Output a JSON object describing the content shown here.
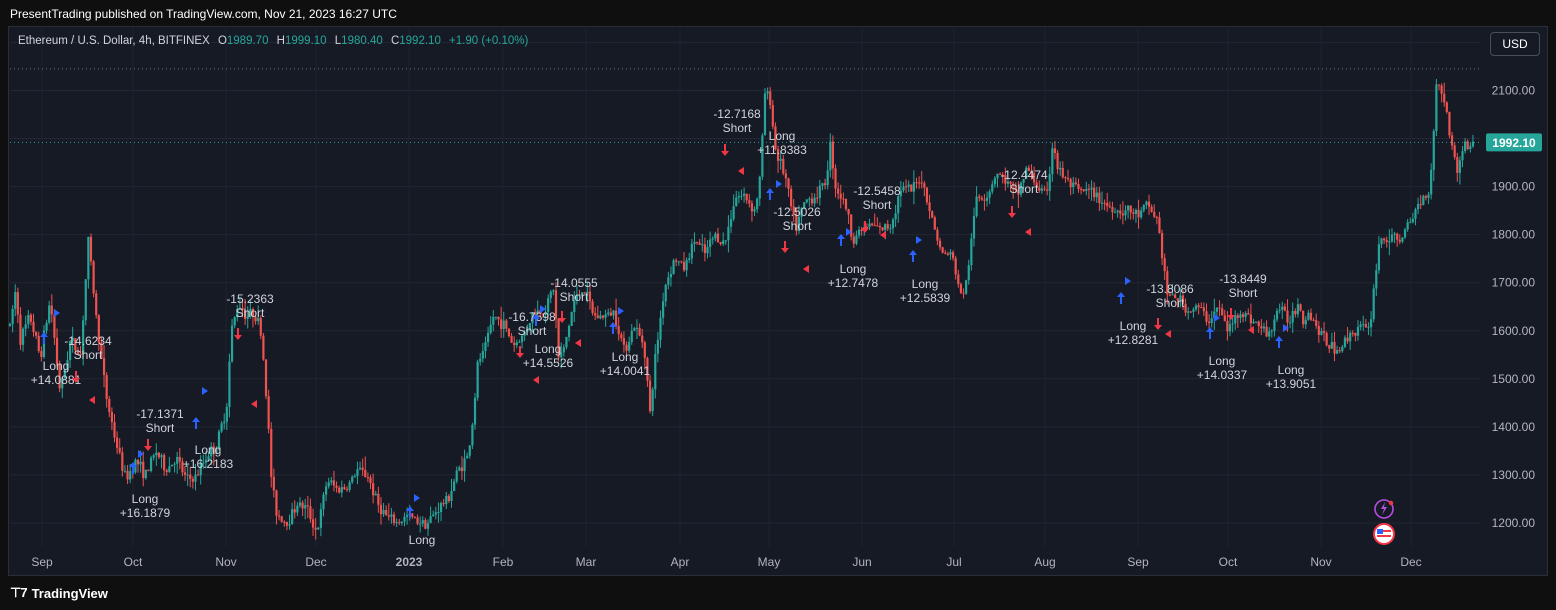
{
  "publish_line": "PresentTrading published on TradingView.com, Nov 21, 2023 16:27 UTC",
  "legend": {
    "symbol": "Ethereum / U.S. Dollar, 4h, BITFINEX",
    "o_label": "O",
    "o_value": "1989.70",
    "h_label": "H",
    "h_value": "1999.10",
    "l_label": "L",
    "l_value": "1980.40",
    "c_label": "C",
    "c_value": "1992.10",
    "change": "+1.90 (+0.10%)"
  },
  "currency_button": "USD",
  "footer_brand": "TradingView",
  "colors": {
    "up": "#26a69a",
    "down": "#ef5350",
    "long_marker": "#2962ff",
    "short_marker": "#f23645",
    "price_label": "#26a69a"
  },
  "chart_data": {
    "type": "candlestick",
    "symbol": "ETHUSD",
    "timeframe": "4h",
    "y_axis": {
      "min": 1150,
      "max": 2230,
      "ticks": [
        "1200.00",
        "1300.00",
        "1400.00",
        "1500.00",
        "1600.00",
        "1700.00",
        "1800.00",
        "1900.00",
        "2000.00",
        "2100.00",
        "2200.00"
      ]
    },
    "x_axis_labels": [
      "Sep",
      "Oct",
      "Nov",
      "Dec",
      "2023",
      "Feb",
      "Mar",
      "Apr",
      "May",
      "Jun",
      "Jul",
      "Aug",
      "Sep",
      "Oct",
      "Nov",
      "Dec"
    ],
    "last_price": 1992.1,
    "last_price_label": "1992.10",
    "reference_line": 2145,
    "price_path": [
      [
        0,
        1610
      ],
      [
        0.6,
        1690
      ],
      [
        1,
        1580
      ],
      [
        2,
        1630
      ],
      [
        3,
        1545
      ],
      [
        4,
        1665
      ],
      [
        5,
        1470
      ],
      [
        6,
        1580
      ],
      [
        7,
        1550
      ],
      [
        7.8,
        1790
      ],
      [
        8.5,
        1640
      ],
      [
        9.5,
        1470
      ],
      [
        10.5,
        1370
      ],
      [
        11.5,
        1290
      ],
      [
        12.5,
        1330
      ],
      [
        13.5,
        1300
      ],
      [
        14.5,
        1350
      ],
      [
        15.5,
        1310
      ],
      [
        16.5,
        1335
      ],
      [
        17.5,
        1290
      ],
      [
        18.5,
        1295
      ],
      [
        19.5,
        1340
      ],
      [
        20.5,
        1360
      ],
      [
        21.5,
        1440
      ],
      [
        22,
        1600
      ],
      [
        22.7,
        1660
      ],
      [
        23.5,
        1630
      ],
      [
        24.3,
        1640
      ],
      [
        25,
        1590
      ],
      [
        25.6,
        1420
      ],
      [
        26,
        1280
      ],
      [
        26.5,
        1220
      ],
      [
        27.5,
        1200
      ],
      [
        28.5,
        1240
      ],
      [
        29.5,
        1230
      ],
      [
        30.5,
        1180
      ],
      [
        31.5,
        1290
      ],
      [
        32.5,
        1270
      ],
      [
        33.5,
        1275
      ],
      [
        34.5,
        1310
      ],
      [
        35.5,
        1300
      ],
      [
        36.5,
        1240
      ],
      [
        37.5,
        1210
      ],
      [
        38.5,
        1200
      ],
      [
        39.5,
        1215
      ],
      [
        40.5,
        1205
      ],
      [
        41.5,
        1200
      ],
      [
        42.5,
        1230
      ],
      [
        43.5,
        1250
      ],
      [
        44.5,
        1310
      ],
      [
        45.5,
        1340
      ],
      [
        46,
        1420
      ],
      [
        46.5,
        1540
      ],
      [
        47,
        1550
      ],
      [
        48,
        1630
      ],
      [
        49,
        1615
      ],
      [
        50,
        1570
      ],
      [
        51,
        1590
      ],
      [
        52,
        1640
      ],
      [
        53,
        1640
      ],
      [
        54,
        1690
      ],
      [
        54.5,
        1540
      ],
      [
        55,
        1560
      ],
      [
        56,
        1660
      ],
      [
        57,
        1690
      ],
      [
        58,
        1630
      ],
      [
        59,
        1630
      ],
      [
        60,
        1640
      ],
      [
        61,
        1560
      ],
      [
        62,
        1610
      ],
      [
        63,
        1570
      ],
      [
        63.6,
        1420
      ],
      [
        64,
        1530
      ],
      [
        65,
        1690
      ],
      [
        66,
        1750
      ],
      [
        67,
        1730
      ],
      [
        68,
        1790
      ],
      [
        69,
        1760
      ],
      [
        70,
        1800
      ],
      [
        71,
        1780
      ],
      [
        72,
        1880
      ],
      [
        73,
        1880
      ],
      [
        74,
        1850
      ],
      [
        74.5,
        1920
      ],
      [
        75,
        2100
      ],
      [
        75.5,
        2080
      ],
      [
        76,
        1980
      ],
      [
        77,
        1920
      ],
      [
        78,
        1810
      ],
      [
        79,
        1870
      ],
      [
        80,
        1880
      ],
      [
        81,
        1910
      ],
      [
        81.5,
        1990
      ],
      [
        82,
        1900
      ],
      [
        83,
        1860
      ],
      [
        83.7,
        1790
      ],
      [
        84.5,
        1810
      ],
      [
        85.5,
        1820
      ],
      [
        86.5,
        1810
      ],
      [
        87.5,
        1820
      ],
      [
        88.5,
        1900
      ],
      [
        89.5,
        1890
      ],
      [
        90.5,
        1920
      ],
      [
        91.5,
        1840
      ],
      [
        92.5,
        1760
      ],
      [
        93.5,
        1760
      ],
      [
        94.5,
        1670
      ],
      [
        95,
        1700
      ],
      [
        96,
        1880
      ],
      [
        97,
        1880
      ],
      [
        98,
        1930
      ],
      [
        99,
        1910
      ],
      [
        100,
        1880
      ],
      [
        101,
        1940
      ],
      [
        102,
        1900
      ],
      [
        103,
        1880
      ],
      [
        103.6,
        2000
      ],
      [
        104,
        1940
      ],
      [
        105,
        1910
      ],
      [
        106,
        1890
      ],
      [
        107,
        1890
      ],
      [
        108,
        1880
      ],
      [
        109,
        1860
      ],
      [
        110,
        1850
      ],
      [
        111,
        1850
      ],
      [
        112,
        1840
      ],
      [
        113,
        1860
      ],
      [
        114,
        1830
      ],
      [
        114.4,
        1760
      ],
      [
        115,
        1670
      ],
      [
        116,
        1670
      ],
      [
        117,
        1640
      ],
      [
        118,
        1650
      ],
      [
        119,
        1620
      ],
      [
        120,
        1650
      ],
      [
        121,
        1600
      ],
      [
        122,
        1640
      ],
      [
        123,
        1630
      ],
      [
        124,
        1610
      ],
      [
        125,
        1590
      ],
      [
        126,
        1650
      ],
      [
        127,
        1620
      ],
      [
        128,
        1660
      ],
      [
        128.5,
        1620
      ],
      [
        129,
        1640
      ],
      [
        130,
        1600
      ],
      [
        131,
        1570
      ],
      [
        132,
        1560
      ],
      [
        133,
        1590
      ],
      [
        134,
        1610
      ],
      [
        135,
        1600
      ],
      [
        136,
        1790
      ],
      [
        137,
        1790
      ],
      [
        138,
        1790
      ],
      [
        139,
        1820
      ],
      [
        140,
        1870
      ],
      [
        141,
        1890
      ],
      [
        141.7,
        2120
      ],
      [
        142.4,
        2090
      ],
      [
        143,
        2010
      ],
      [
        143.7,
        1930
      ],
      [
        144.4,
        1990
      ],
      [
        145,
        1980
      ],
      [
        145.3,
        1992
      ]
    ],
    "trade_annotations": [
      {
        "label": "Long",
        "value": "+14.0881"
      },
      {
        "label": "Short",
        "value": "-14.6234"
      },
      {
        "label": "Short",
        "value": "-17.1371"
      },
      {
        "label": "Long",
        "value": "+16.1879"
      },
      {
        "label": "Long",
        "value": "+16.2183"
      },
      {
        "label": "Short",
        "value": "-15.2363"
      },
      {
        "label": "Long",
        "value": ""
      },
      {
        "label": "Short",
        "value": "-16.7598"
      },
      {
        "label": "Long",
        "value": "+14.5526"
      },
      {
        "label": "Short",
        "value": "-14.0555"
      },
      {
        "label": "Long",
        "value": "+14.0041"
      },
      {
        "label": "Short",
        "value": "-12.7168"
      },
      {
        "label": "Long",
        "value": "+11.8383"
      },
      {
        "label": "Short",
        "value": "-12.5026"
      },
      {
        "label": "Long",
        "value": "+12.7478"
      },
      {
        "label": "Short",
        "value": "-12.5458"
      },
      {
        "label": "Long",
        "value": "+12.5839"
      },
      {
        "label": "Short",
        "value": "-12.4474"
      },
      {
        "label": "Long",
        "value": "+12.8281"
      },
      {
        "label": "Short",
        "value": "-13.8086"
      },
      {
        "label": "Long",
        "value": "+14.0337"
      },
      {
        "label": "Short",
        "value": "-13.8449"
      },
      {
        "label": "Long",
        "value": "+13.9051"
      }
    ]
  }
}
